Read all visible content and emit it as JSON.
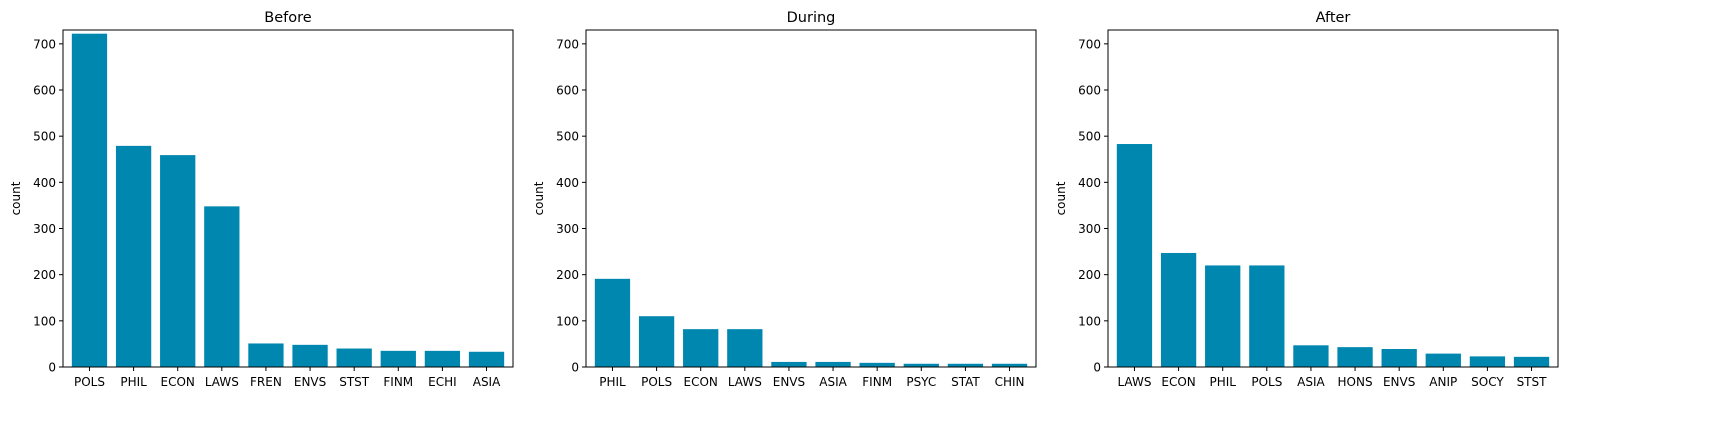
{
  "colors": {
    "bar": "#0087AF",
    "axis": "#000000",
    "background": "#ffffff"
  },
  "chart_data": [
    {
      "type": "bar",
      "title": "Before",
      "xlabel": "",
      "ylabel": "count",
      "ylim": [
        0,
        730
      ],
      "yticks": [
        0,
        100,
        200,
        300,
        400,
        500,
        600,
        700
      ],
      "grid": false,
      "categories": [
        "POLS",
        "PHIL",
        "ECON",
        "LAWS",
        "FREN",
        "ENVS",
        "STST",
        "FINM",
        "ECHI",
        "ASIA"
      ],
      "values": [
        722,
        479,
        459,
        348,
        51,
        48,
        40,
        35,
        35,
        33
      ]
    },
    {
      "type": "bar",
      "title": "During",
      "xlabel": "",
      "ylabel": "count",
      "ylim": [
        0,
        730
      ],
      "yticks": [
        0,
        100,
        200,
        300,
        400,
        500,
        600,
        700
      ],
      "grid": false,
      "categories": [
        "PHIL",
        "POLS",
        "ECON",
        "LAWS",
        "ENVS",
        "ASIA",
        "FINM",
        "PSYC",
        "STAT",
        "CHIN"
      ],
      "values": [
        191,
        110,
        82,
        82,
        11,
        11,
        9,
        7,
        7,
        7
      ]
    },
    {
      "type": "bar",
      "title": "After",
      "xlabel": "",
      "ylabel": "count",
      "ylim": [
        0,
        730
      ],
      "yticks": [
        0,
        100,
        200,
        300,
        400,
        500,
        600,
        700
      ],
      "grid": false,
      "categories": [
        "LAWS",
        "ECON",
        "PHIL",
        "POLS",
        "ASIA",
        "HONS",
        "ENVS",
        "ANIP",
        "SOCY",
        "STST"
      ],
      "values": [
        483,
        247,
        220,
        220,
        47,
        43,
        39,
        29,
        23,
        22
      ]
    }
  ]
}
